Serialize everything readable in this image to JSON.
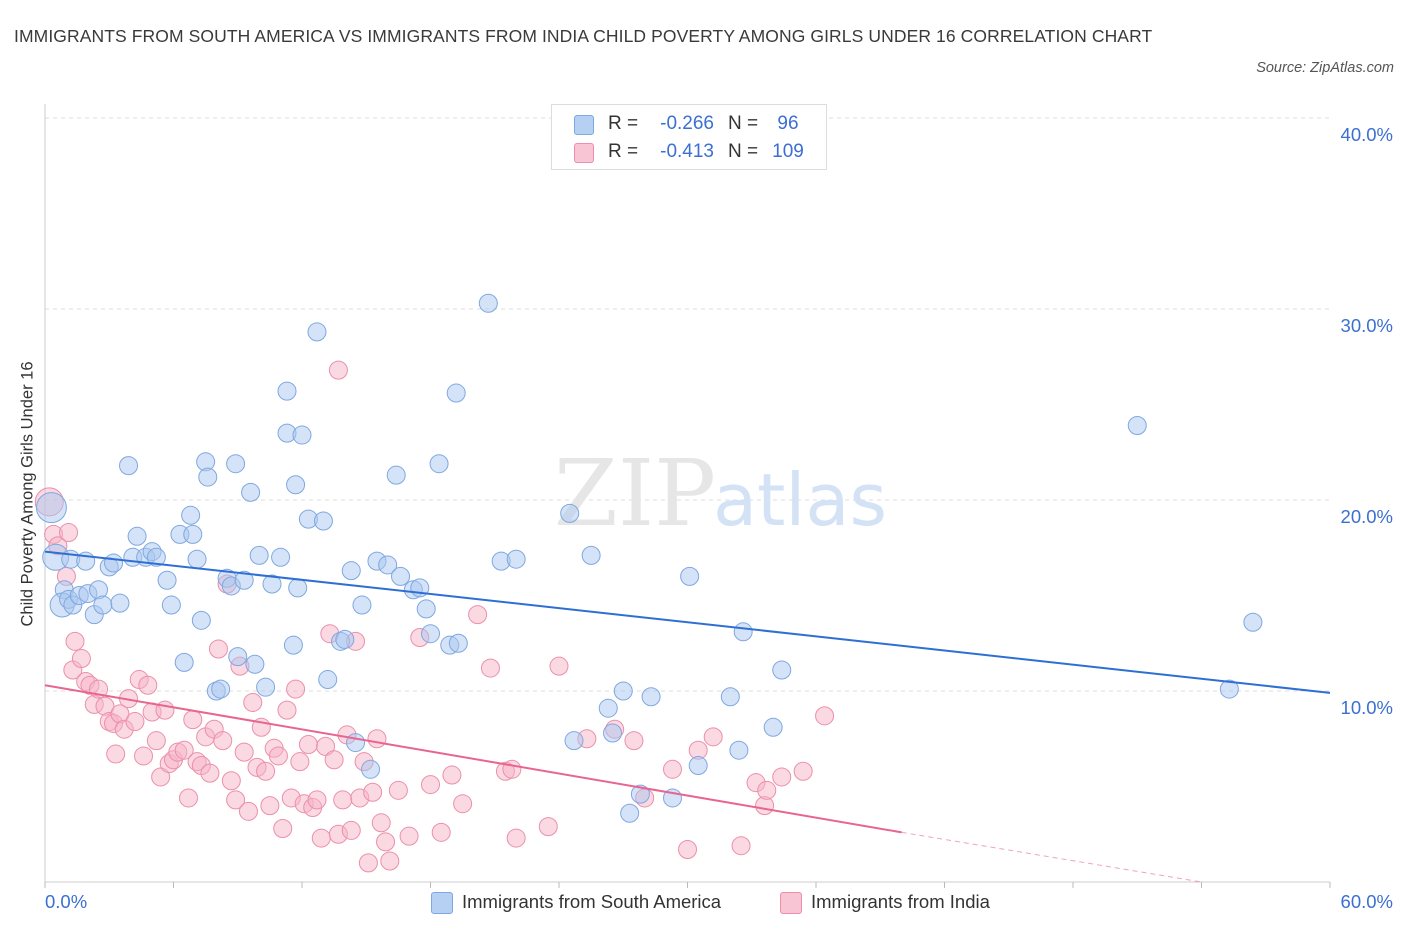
{
  "title": "IMMIGRANTS FROM SOUTH AMERICA VS IMMIGRANTS FROM INDIA CHILD POVERTY AMONG GIRLS UNDER 16 CORRELATION CHART",
  "source": "Source: ZipAtlas.com",
  "watermark": {
    "zip": "ZIP",
    "atlas": "atlas"
  },
  "legend": {
    "r_label": "R =",
    "n_label": "N =",
    "items": [
      {
        "r": "-0.266",
        "n": "96"
      },
      {
        "r": "-0.413",
        "n": "109"
      }
    ]
  },
  "bottom_legend": [
    "Immigrants from South America",
    "Immigrants from India"
  ],
  "colors": {
    "blue_fill": "#a9c8f0",
    "blue_stroke": "#7fa8e0",
    "blue_line": "#2e6fd4",
    "pink_fill": "#f5b3c8",
    "pink_stroke": "#ec8fab",
    "pink_line": "#e8658f",
    "tick_label": "#3b6fd1",
    "grid": "#dddddd"
  },
  "chart_data": {
    "type": "scatter",
    "title": "IMMIGRANTS FROM SOUTH AMERICA VS IMMIGRANTS FROM INDIA CHILD POVERTY AMONG GIRLS UNDER 16 CORRELATION CHART",
    "xlabel": "",
    "ylabel": "Child Poverty Among Girls Under 16",
    "xlim": [
      0,
      60
    ],
    "ylim": [
      0,
      40
    ],
    "x_tick_labels": [
      "0.0%",
      "60.0%"
    ],
    "y_ticks": [
      10,
      20,
      30,
      40
    ],
    "y_tick_labels": [
      "10.0%",
      "20.0%",
      "30.0%",
      "40.0%"
    ],
    "grid": true,
    "legend_position": "top-center",
    "series": [
      {
        "name": "Immigrants from South America",
        "color": "#a9c8f0",
        "trend": {
          "x": [
            0,
            60
          ],
          "y": [
            17.3,
            9.9
          ]
        },
        "points": [
          [
            0.3,
            19.6
          ],
          [
            0.5,
            17.0
          ],
          [
            0.9,
            15.3
          ],
          [
            0.8,
            14.5
          ],
          [
            1.1,
            14.8
          ],
          [
            1.2,
            16.9
          ],
          [
            1.3,
            14.5
          ],
          [
            1.6,
            15.0
          ],
          [
            1.9,
            16.8
          ],
          [
            2.0,
            15.1
          ],
          [
            2.3,
            14.0
          ],
          [
            2.5,
            15.3
          ],
          [
            2.7,
            14.5
          ],
          [
            3.0,
            16.5
          ],
          [
            3.2,
            16.7
          ],
          [
            3.5,
            14.6
          ],
          [
            3.9,
            21.8
          ],
          [
            4.1,
            17.0
          ],
          [
            4.3,
            18.1
          ],
          [
            4.7,
            17.0
          ],
          [
            5.0,
            17.3
          ],
          [
            5.2,
            17.0
          ],
          [
            5.7,
            15.8
          ],
          [
            5.9,
            14.5
          ],
          [
            6.3,
            18.2
          ],
          [
            6.5,
            11.5
          ],
          [
            6.8,
            19.2
          ],
          [
            6.9,
            18.2
          ],
          [
            7.1,
            16.9
          ],
          [
            7.3,
            13.7
          ],
          [
            7.5,
            22.0
          ],
          [
            7.6,
            21.2
          ],
          [
            8.0,
            10.0
          ],
          [
            8.2,
            10.1
          ],
          [
            8.5,
            15.9
          ],
          [
            8.7,
            15.5
          ],
          [
            8.9,
            21.9
          ],
          [
            9.0,
            11.8
          ],
          [
            9.3,
            15.8
          ],
          [
            9.6,
            20.4
          ],
          [
            9.8,
            11.4
          ],
          [
            10.0,
            17.1
          ],
          [
            10.3,
            10.2
          ],
          [
            10.6,
            15.6
          ],
          [
            11.0,
            17.0
          ],
          [
            11.3,
            23.5
          ],
          [
            11.6,
            12.4
          ],
          [
            11.7,
            20.8
          ],
          [
            11.8,
            15.4
          ],
          [
            12.0,
            23.4
          ],
          [
            12.3,
            19.0
          ],
          [
            12.7,
            28.8
          ],
          [
            13.0,
            18.9
          ],
          [
            13.2,
            10.6
          ],
          [
            13.8,
            12.6
          ],
          [
            14.0,
            12.7
          ],
          [
            14.3,
            16.3
          ],
          [
            14.5,
            7.3
          ],
          [
            14.8,
            14.5
          ],
          [
            15.2,
            5.9
          ],
          [
            15.5,
            16.8
          ],
          [
            16.0,
            16.6
          ],
          [
            16.4,
            21.3
          ],
          [
            16.6,
            16.0
          ],
          [
            17.2,
            15.3
          ],
          [
            17.5,
            15.4
          ],
          [
            17.8,
            14.3
          ],
          [
            18.0,
            13.0
          ],
          [
            18.4,
            21.9
          ],
          [
            18.9,
            12.4
          ],
          [
            19.2,
            25.6
          ],
          [
            19.3,
            12.5
          ],
          [
            20.7,
            30.3
          ],
          [
            21.3,
            16.8
          ],
          [
            22.0,
            16.9
          ],
          [
            24.5,
            19.3
          ],
          [
            24.7,
            7.4
          ],
          [
            25.5,
            17.1
          ],
          [
            26.3,
            9.1
          ],
          [
            26.5,
            7.8
          ],
          [
            27.0,
            10.0
          ],
          [
            27.3,
            3.6
          ],
          [
            27.8,
            4.6
          ],
          [
            28.3,
            9.7
          ],
          [
            29.3,
            4.4
          ],
          [
            30.1,
            16.0
          ],
          [
            30.5,
            6.1
          ],
          [
            32.0,
            9.7
          ],
          [
            32.4,
            6.9
          ],
          [
            32.6,
            13.1
          ],
          [
            34.0,
            8.1
          ],
          [
            34.4,
            11.1
          ],
          [
            51.0,
            23.9
          ],
          [
            55.3,
            10.1
          ],
          [
            56.4,
            13.6
          ],
          [
            11.3,
            25.7
          ]
        ]
      },
      {
        "name": "Immigrants from India",
        "color": "#f5b3c8",
        "trend": {
          "x": [
            0,
            40
          ],
          "y": [
            10.3,
            2.6
          ]
        },
        "trend_dashed": {
          "x": [
            40,
            54
          ],
          "y": [
            2.6,
            0
          ]
        },
        "points": [
          [
            0.2,
            19.9
          ],
          [
            0.4,
            18.2
          ],
          [
            0.6,
            17.6
          ],
          [
            1.0,
            16.0
          ],
          [
            1.1,
            18.3
          ],
          [
            1.3,
            11.1
          ],
          [
            1.4,
            12.6
          ],
          [
            1.7,
            11.7
          ],
          [
            1.9,
            10.5
          ],
          [
            2.1,
            10.3
          ],
          [
            2.3,
            9.3
          ],
          [
            2.5,
            10.1
          ],
          [
            2.8,
            9.2
          ],
          [
            3.0,
            8.4
          ],
          [
            3.2,
            8.3
          ],
          [
            3.3,
            6.7
          ],
          [
            3.5,
            8.8
          ],
          [
            3.7,
            8.0
          ],
          [
            3.9,
            9.6
          ],
          [
            4.2,
            8.4
          ],
          [
            4.4,
            10.6
          ],
          [
            4.6,
            6.6
          ],
          [
            4.8,
            10.3
          ],
          [
            5.0,
            8.9
          ],
          [
            5.2,
            7.4
          ],
          [
            5.4,
            5.5
          ],
          [
            5.6,
            9.0
          ],
          [
            5.8,
            6.2
          ],
          [
            6.0,
            6.4
          ],
          [
            6.2,
            6.8
          ],
          [
            6.5,
            6.9
          ],
          [
            6.7,
            4.4
          ],
          [
            6.9,
            8.5
          ],
          [
            7.1,
            6.3
          ],
          [
            7.3,
            6.1
          ],
          [
            7.5,
            7.6
          ],
          [
            7.7,
            5.7
          ],
          [
            7.9,
            8.0
          ],
          [
            8.1,
            12.2
          ],
          [
            8.3,
            7.4
          ],
          [
            8.5,
            15.6
          ],
          [
            8.7,
            5.3
          ],
          [
            8.9,
            4.3
          ],
          [
            9.1,
            11.3
          ],
          [
            9.3,
            6.8
          ],
          [
            9.5,
            3.7
          ],
          [
            9.7,
            9.4
          ],
          [
            9.9,
            6.0
          ],
          [
            10.1,
            8.1
          ],
          [
            10.3,
            5.8
          ],
          [
            10.5,
            4.0
          ],
          [
            10.7,
            7.0
          ],
          [
            10.9,
            6.6
          ],
          [
            11.1,
            2.8
          ],
          [
            11.3,
            9.0
          ],
          [
            11.5,
            4.4
          ],
          [
            11.7,
            10.1
          ],
          [
            11.9,
            6.3
          ],
          [
            12.1,
            4.1
          ],
          [
            12.3,
            7.2
          ],
          [
            12.5,
            3.9
          ],
          [
            12.7,
            4.3
          ],
          [
            12.9,
            2.3
          ],
          [
            13.1,
            7.1
          ],
          [
            13.3,
            13.0
          ],
          [
            13.5,
            6.4
          ],
          [
            13.7,
            2.5
          ],
          [
            13.9,
            4.3
          ],
          [
            14.1,
            7.7
          ],
          [
            14.3,
            2.7
          ],
          [
            14.5,
            12.6
          ],
          [
            14.7,
            4.4
          ],
          [
            14.9,
            6.3
          ],
          [
            15.1,
            1.0
          ],
          [
            15.3,
            4.7
          ],
          [
            15.5,
            7.5
          ],
          [
            15.7,
            3.1
          ],
          [
            15.9,
            2.1
          ],
          [
            16.1,
            1.1
          ],
          [
            16.5,
            4.8
          ],
          [
            17.0,
            2.4
          ],
          [
            17.5,
            12.8
          ],
          [
            18.0,
            5.1
          ],
          [
            18.5,
            2.6
          ],
          [
            19.0,
            5.6
          ],
          [
            19.5,
            4.1
          ],
          [
            20.2,
            14.0
          ],
          [
            20.8,
            11.2
          ],
          [
            21.5,
            5.8
          ],
          [
            22.0,
            2.3
          ],
          [
            23.5,
            2.9
          ],
          [
            24.0,
            11.3
          ],
          [
            25.3,
            7.5
          ],
          [
            26.6,
            8.0
          ],
          [
            27.5,
            7.4
          ],
          [
            28.0,
            4.4
          ],
          [
            29.3,
            5.9
          ],
          [
            30.0,
            1.7
          ],
          [
            30.5,
            6.9
          ],
          [
            31.2,
            7.6
          ],
          [
            32.5,
            1.9
          ],
          [
            33.2,
            5.2
          ],
          [
            33.6,
            4.0
          ],
          [
            34.4,
            5.5
          ],
          [
            35.4,
            5.8
          ],
          [
            36.4,
            8.7
          ],
          [
            13.7,
            26.8
          ],
          [
            33.7,
            4.8
          ],
          [
            21.8,
            5.9
          ]
        ]
      }
    ]
  }
}
